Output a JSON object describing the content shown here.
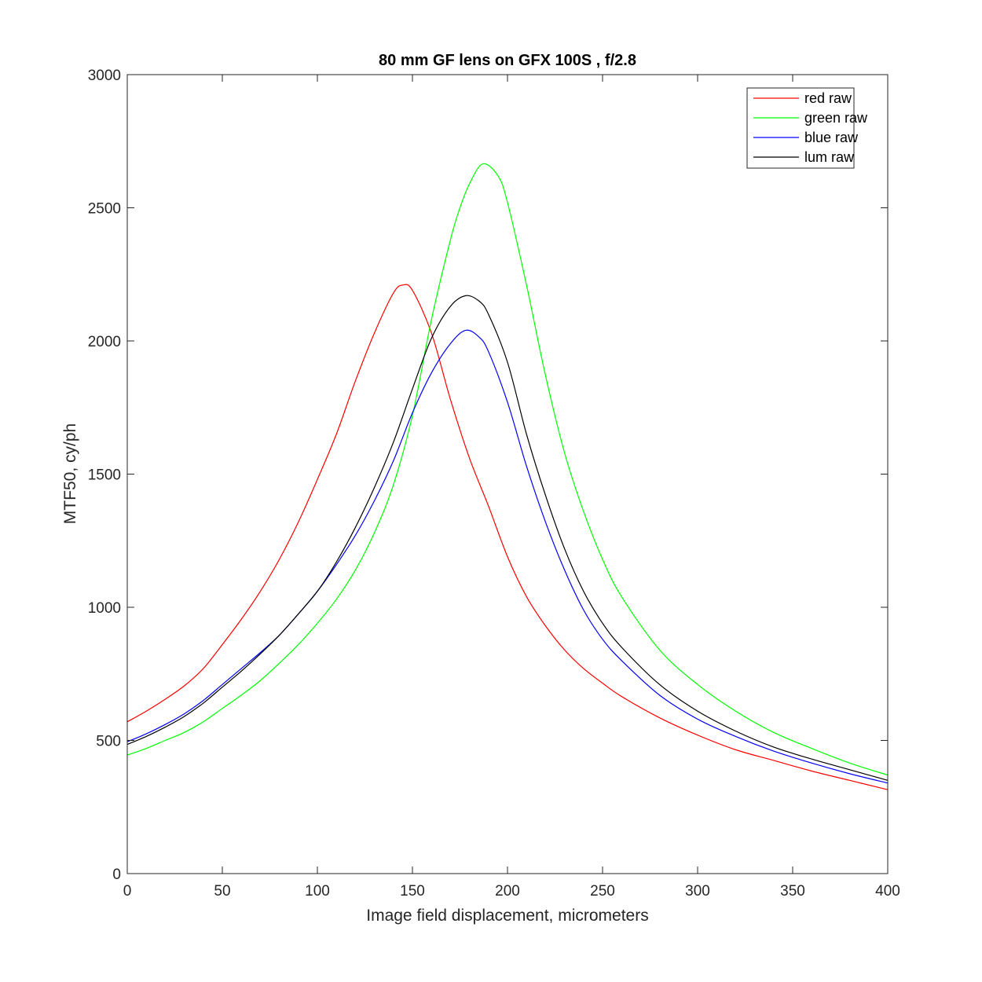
{
  "chart_data": {
    "type": "line",
    "title": "80 mm GF lens on GFX 100S , f/2.8",
    "xlabel": "Image field displacement, micrometers",
    "ylabel": "MTF50, cy/ph",
    "xlim": [
      0,
      400
    ],
    "ylim": [
      0,
      3000
    ],
    "xticks": [
      0,
      50,
      100,
      150,
      200,
      250,
      300,
      350,
      400
    ],
    "yticks": [
      0,
      500,
      1000,
      1500,
      2000,
      2500,
      3000
    ],
    "grid": false,
    "legend_position": "top-right",
    "series": [
      {
        "name": "red raw",
        "color": "#ff0000",
        "x": [
          0,
          10,
          20,
          30,
          40,
          50,
          60,
          70,
          80,
          90,
          100,
          110,
          120,
          130,
          140,
          145,
          150,
          160,
          170,
          180,
          190,
          200,
          210,
          220,
          230,
          240,
          250,
          260,
          280,
          300,
          320,
          340,
          360,
          380,
          400
        ],
        "y": [
          570,
          610,
          655,
          705,
          770,
          860,
          955,
          1060,
          1180,
          1320,
          1480,
          1650,
          1850,
          2030,
          2180,
          2210,
          2190,
          2030,
          1780,
          1560,
          1380,
          1190,
          1040,
          930,
          840,
          770,
          715,
          665,
          585,
          520,
          465,
          425,
          385,
          350,
          315
        ]
      },
      {
        "name": "green raw",
        "color": "#00ff00",
        "x": [
          0,
          10,
          20,
          30,
          40,
          50,
          60,
          70,
          80,
          90,
          100,
          110,
          120,
          130,
          140,
          150,
          160,
          170,
          175,
          180,
          187,
          195,
          200,
          210,
          220,
          230,
          240,
          250,
          260,
          280,
          300,
          320,
          340,
          360,
          380,
          400
        ],
        "y": [
          445,
          470,
          500,
          530,
          570,
          620,
          670,
          725,
          790,
          860,
          940,
          1030,
          1140,
          1280,
          1460,
          1720,
          2080,
          2380,
          2500,
          2590,
          2665,
          2620,
          2520,
          2210,
          1870,
          1580,
          1360,
          1180,
          1040,
          840,
          710,
          610,
          530,
          470,
          415,
          370
        ]
      },
      {
        "name": "blue raw",
        "color": "#0000ff",
        "x": [
          0,
          10,
          20,
          30,
          40,
          50,
          60,
          70,
          80,
          90,
          100,
          110,
          120,
          130,
          140,
          150,
          160,
          170,
          178,
          185,
          190,
          200,
          210,
          220,
          230,
          240,
          250,
          260,
          280,
          300,
          320,
          340,
          360,
          380,
          400
        ],
        "y": [
          495,
          525,
          560,
          600,
          650,
          710,
          770,
          830,
          895,
          975,
          1060,
          1160,
          1270,
          1400,
          1550,
          1730,
          1880,
          1990,
          2040,
          2015,
          1960,
          1770,
          1530,
          1320,
          1140,
          990,
          880,
          800,
          670,
          580,
          515,
          460,
          415,
          375,
          340
        ]
      },
      {
        "name": "lum raw",
        "color": "#000000",
        "x": [
          0,
          10,
          20,
          30,
          40,
          50,
          60,
          70,
          80,
          90,
          100,
          110,
          120,
          130,
          140,
          150,
          160,
          170,
          178,
          185,
          190,
          200,
          210,
          220,
          230,
          240,
          250,
          260,
          280,
          300,
          320,
          340,
          360,
          380,
          400
        ],
        "y": [
          485,
          515,
          550,
          590,
          640,
          700,
          760,
          825,
          895,
          975,
          1060,
          1170,
          1300,
          1450,
          1620,
          1820,
          2010,
          2130,
          2170,
          2150,
          2100,
          1920,
          1650,
          1420,
          1220,
          1060,
          940,
          850,
          710,
          610,
          535,
          475,
          430,
          390,
          350
        ]
      }
    ]
  }
}
